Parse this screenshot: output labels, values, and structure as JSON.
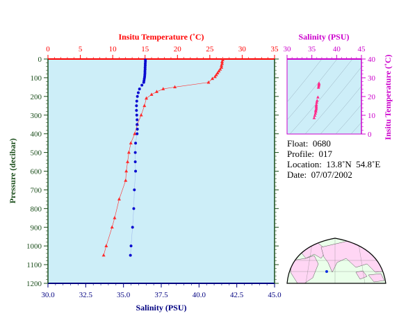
{
  "chart_data": {
    "type": "scatter",
    "main_profile": {
      "top_axis_label": "Insitu Temperature (˚C)",
      "top_axis_ticks": [
        "0",
        "5",
        "10",
        "15",
        "20",
        "25",
        "30",
        "35"
      ],
      "bottom_axis_label": "Salinity (PSU)",
      "bottom_axis_ticks": [
        "30.0",
        "32.5",
        "35.0",
        "37.5",
        "40.0",
        "42.5",
        "45.0"
      ],
      "left_axis_label": "Pressure (decibar)",
      "left_axis_ticks": [
        "0",
        "100",
        "200",
        "300",
        "400",
        "500",
        "600",
        "700",
        "800",
        "900",
        "1000",
        "1100",
        "1200"
      ],
      "temperature_range": [
        0,
        35
      ],
      "salinity_range": [
        30,
        45
      ],
      "pressure_range": [
        0,
        1200
      ],
      "pressure_reversed": true,
      "series": [
        {
          "name": "Temperature",
          "color": "#ff2a2a",
          "marker": "triangle",
          "points": [
            {
              "p": 5,
              "t": 27.0
            },
            {
              "p": 15,
              "t": 26.9
            },
            {
              "p": 25,
              "t": 26.9
            },
            {
              "p": 35,
              "t": 26.8
            },
            {
              "p": 45,
              "t": 26.8
            },
            {
              "p": 55,
              "t": 26.6
            },
            {
              "p": 65,
              "t": 26.4
            },
            {
              "p": 75,
              "t": 26.2
            },
            {
              "p": 85,
              "t": 26.0
            },
            {
              "p": 95,
              "t": 25.8
            },
            {
              "p": 105,
              "t": 25.4
            },
            {
              "p": 125,
              "t": 24.8
            },
            {
              "p": 150,
              "t": 19.6
            },
            {
              "p": 160,
              "t": 17.8
            },
            {
              "p": 175,
              "t": 16.8
            },
            {
              "p": 190,
              "t": 16.0
            },
            {
              "p": 210,
              "t": 15.2
            },
            {
              "p": 250,
              "t": 14.9
            },
            {
              "p": 300,
              "t": 14.4
            },
            {
              "p": 350,
              "t": 13.8
            },
            {
              "p": 400,
              "t": 13.4
            },
            {
              "p": 450,
              "t": 12.8
            },
            {
              "p": 500,
              "t": 12.5
            },
            {
              "p": 550,
              "t": 12.3
            },
            {
              "p": 600,
              "t": 12.1
            },
            {
              "p": 650,
              "t": 12.0
            },
            {
              "p": 750,
              "t": 11.0
            },
            {
              "p": 850,
              "t": 10.3
            },
            {
              "p": 900,
              "t": 9.9
            },
            {
              "p": 1000,
              "t": 9.0
            },
            {
              "p": 1050,
              "t": 8.6
            }
          ]
        },
        {
          "name": "Salinity",
          "color": "#0a0ad0",
          "marker": "circle",
          "points": [
            {
              "p": 5,
              "s": 36.45
            },
            {
              "p": 15,
              "s": 36.45
            },
            {
              "p": 25,
              "s": 36.44
            },
            {
              "p": 35,
              "s": 36.44
            },
            {
              "p": 45,
              "s": 36.43
            },
            {
              "p": 55,
              "s": 36.43
            },
            {
              "p": 65,
              "s": 36.42
            },
            {
              "p": 75,
              "s": 36.42
            },
            {
              "p": 85,
              "s": 36.41
            },
            {
              "p": 95,
              "s": 36.4
            },
            {
              "p": 105,
              "s": 36.38
            },
            {
              "p": 115,
              "s": 36.36
            },
            {
              "p": 125,
              "s": 36.34
            },
            {
              "p": 140,
              "s": 36.22
            },
            {
              "p": 160,
              "s": 36.06
            },
            {
              "p": 180,
              "s": 35.98
            },
            {
              "p": 200,
              "s": 35.92
            },
            {
              "p": 225,
              "s": 35.88
            },
            {
              "p": 250,
              "s": 35.86
            },
            {
              "p": 275,
              "s": 35.86
            },
            {
              "p": 300,
              "s": 35.88
            },
            {
              "p": 325,
              "s": 35.9
            },
            {
              "p": 350,
              "s": 35.9
            },
            {
              "p": 375,
              "s": 35.92
            },
            {
              "p": 400,
              "s": 35.9
            },
            {
              "p": 450,
              "s": 35.8
            },
            {
              "p": 500,
              "s": 35.78
            },
            {
              "p": 550,
              "s": 35.78
            },
            {
              "p": 600,
              "s": 35.8
            },
            {
              "p": 700,
              "s": 35.72
            },
            {
              "p": 800,
              "s": 35.68
            },
            {
              "p": 900,
              "s": 35.6
            },
            {
              "p": 1000,
              "s": 35.5
            },
            {
              "p": 1050,
              "s": 35.46
            }
          ]
        }
      ]
    },
    "ts_diagram": {
      "top_axis_label": "Salinity (PSU)",
      "top_axis_ticks": [
        "30",
        "35",
        "40",
        "45"
      ],
      "right_axis_label": "Insitu Temperature (˚C)",
      "right_axis_ticks": [
        "0",
        "10",
        "20",
        "30",
        "40"
      ],
      "salinity_range": [
        30,
        45
      ],
      "temperature_range": [
        0,
        40
      ],
      "points": [
        {
          "s": 36.45,
          "t": 27.0
        },
        {
          "s": 36.44,
          "t": 26.8
        },
        {
          "s": 36.42,
          "t": 26.2
        },
        {
          "s": 36.4,
          "t": 25.6
        },
        {
          "s": 36.34,
          "t": 24.8
        },
        {
          "s": 36.22,
          "t": 19.6
        },
        {
          "s": 36.06,
          "t": 17.8
        },
        {
          "s": 35.98,
          "t": 16.8
        },
        {
          "s": 35.92,
          "t": 15.6
        },
        {
          "s": 35.88,
          "t": 14.9
        },
        {
          "s": 35.9,
          "t": 14.2
        },
        {
          "s": 35.9,
          "t": 13.4
        },
        {
          "s": 35.8,
          "t": 12.8
        },
        {
          "s": 35.78,
          "t": 12.3
        },
        {
          "s": 35.8,
          "t": 12.0
        },
        {
          "s": 35.72,
          "t": 11.0
        },
        {
          "s": 35.6,
          "t": 9.9
        },
        {
          "s": 35.46,
          "t": 8.6
        }
      ]
    }
  },
  "info": {
    "float": "Float:  0680",
    "profile": "Profile:  017",
    "location": "Location:  13.8˚N  54.8˚E",
    "date": "Date:  07/07/2002"
  },
  "colors": {
    "plot_bg": "#cdeef8",
    "temperature_axis": "#ff0000",
    "salinity_axis": "#000080",
    "pressure_axis": "#006400",
    "ts_axis": "#cc00cc",
    "land": "#ffd6f4",
    "ocean": "#eaffea"
  }
}
